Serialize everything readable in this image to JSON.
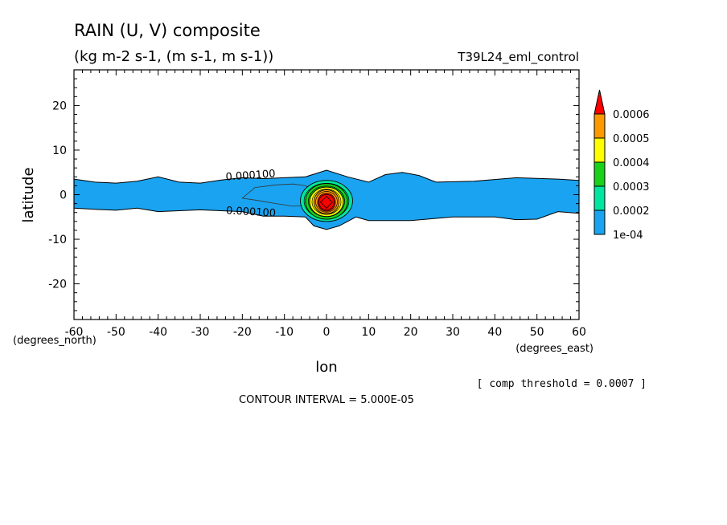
{
  "chart_data": {
    "type": "contour",
    "title": "RAIN (U, V) composite",
    "subtitle": "(kg m-2 s-1, (m s-1, m s-1))",
    "run_label": "T39L24_eml_control",
    "xlabel": "lon",
    "ylabel": "latitude",
    "x_units": "(degrees_east)",
    "y_units": "(degrees_north)",
    "xlim": [
      -60,
      60
    ],
    "ylim": [
      -28,
      28
    ],
    "x_ticks": [
      -60,
      -50,
      -40,
      -30,
      -20,
      -10,
      0,
      10,
      20,
      30,
      40,
      50,
      60
    ],
    "y_ticks": [
      -20,
      -10,
      0,
      10,
      20
    ],
    "contour_interval_text": "CONTOUR INTERVAL = 5.000E-05",
    "threshold_text": "[ comp threshold = 0.0007 ]",
    "contour_labels": [
      "0.000100",
      "0.000100"
    ],
    "colorbar": {
      "levels": [
        "1e-04",
        "0.0002",
        "0.0003",
        "0.0004",
        "0.0005",
        "0.0006"
      ],
      "colors": [
        "#1aa3f0",
        "#00e6a0",
        "#19d219",
        "#ffff00",
        "#ff9900",
        "#ff0000"
      ]
    },
    "rain_band_upper": [
      [
        -60,
        3.5
      ],
      [
        -55,
        2.8
      ],
      [
        -50,
        2.6
      ],
      [
        -45,
        3.0
      ],
      [
        -40,
        4.0
      ],
      [
        -35,
        2.8
      ],
      [
        -30,
        2.6
      ],
      [
        -25,
        3.3
      ],
      [
        -20,
        3.8
      ],
      [
        -15,
        3.6
      ],
      [
        -10,
        3.8
      ],
      [
        -5,
        4.0
      ],
      [
        0,
        5.5
      ],
      [
        5,
        4.0
      ],
      [
        10,
        2.8
      ],
      [
        14,
        4.5
      ],
      [
        18,
        5.0
      ],
      [
        22,
        4.3
      ],
      [
        26,
        2.8
      ],
      [
        35,
        3.0
      ],
      [
        45,
        3.8
      ],
      [
        55,
        3.5
      ],
      [
        60,
        3.2
      ]
    ],
    "rain_band_lower": [
      [
        -60,
        -3.0
      ],
      [
        -55,
        -3.3
      ],
      [
        -50,
        -3.5
      ],
      [
        -45,
        -3.0
      ],
      [
        -40,
        -3.8
      ],
      [
        -35,
        -3.6
      ],
      [
        -30,
        -3.4
      ],
      [
        -25,
        -3.6
      ],
      [
        -20,
        -3.8
      ],
      [
        -15,
        -4.8
      ],
      [
        -10,
        -4.8
      ],
      [
        -5,
        -5.0
      ],
      [
        -3,
        -7.0
      ],
      [
        0,
        -7.8
      ],
      [
        3,
        -7.0
      ],
      [
        7,
        -5.0
      ],
      [
        10,
        -5.8
      ],
      [
        20,
        -5.8
      ],
      [
        30,
        -5.0
      ],
      [
        40,
        -5.0
      ],
      [
        45,
        -5.6
      ],
      [
        50,
        -5.5
      ],
      [
        55,
        -3.8
      ],
      [
        60,
        -4.2
      ]
    ],
    "contour_blobs": [
      {
        "value": 0.00015,
        "lon": 0,
        "lat": -1.4,
        "rx": 6.2,
        "ry": 4.6
      },
      {
        "value": 0.00025,
        "lon": 0,
        "lat": -1.5,
        "rx": 5.0,
        "ry": 4.0
      },
      {
        "value": 0.00035,
        "lon": 0,
        "lat": -1.6,
        "rx": 4.0,
        "ry": 3.3
      },
      {
        "value": 0.00045,
        "lon": 0,
        "lat": -1.6,
        "rx": 3.0,
        "ry": 2.7
      },
      {
        "value": 0.00055,
        "lon": 0,
        "lat": -1.7,
        "rx": 2.1,
        "ry": 2.0
      }
    ],
    "max_cell": {
      "value": 0.0006,
      "lon": 0,
      "lat": -1.7,
      "half_width": 1.4
    }
  }
}
